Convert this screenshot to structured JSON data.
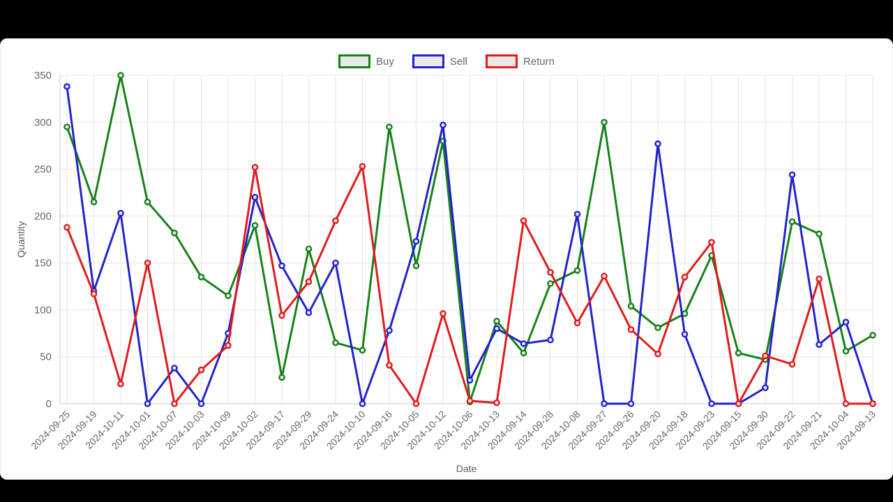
{
  "page": {
    "background_color": "#000000",
    "card_background_color": "#ffffff"
  },
  "chart_data": {
    "type": "line",
    "title": "",
    "xlabel": "Date",
    "ylabel": "Quantity",
    "ylim": [
      0,
      350
    ],
    "yticks": [
      0,
      50,
      100,
      150,
      200,
      250,
      300,
      350
    ],
    "grid": true,
    "legend_position": "top",
    "categories": [
      "2024-09-25",
      "2024-09-19",
      "2024-10-11",
      "2024-10-01",
      "2024-10-07",
      "2024-10-03",
      "2024-10-09",
      "2024-10-02",
      "2024-09-17",
      "2024-09-29",
      "2024-09-24",
      "2024-10-10",
      "2024-09-16",
      "2024-10-05",
      "2024-10-12",
      "2024-10-06",
      "2024-10-13",
      "2024-09-14",
      "2024-09-28",
      "2024-10-08",
      "2024-09-27",
      "2024-09-26",
      "2024-09-20",
      "2024-09-18",
      "2024-09-23",
      "2024-09-15",
      "2024-09-30",
      "2024-09-22",
      "2024-09-21",
      "2024-10-04",
      "2024-09-13"
    ],
    "series": [
      {
        "name": "Buy",
        "color": "#178217",
        "values": [
          295,
          215,
          350,
          215,
          182,
          135,
          115,
          190,
          28,
          165,
          65,
          57,
          295,
          147,
          280,
          2,
          88,
          54,
          128,
          142,
          300,
          104,
          81,
          96,
          158,
          54,
          47,
          194,
          181,
          56,
          73
        ]
      },
      {
        "name": "Sell",
        "color": "#2222cc",
        "values": [
          338,
          120,
          203,
          0,
          38,
          0,
          75,
          220,
          147,
          97,
          150,
          0,
          78,
          173,
          297,
          25,
          80,
          64,
          68,
          202,
          0,
          0,
          277,
          74,
          0,
          0,
          17,
          244,
          63,
          87,
          0
        ]
      },
      {
        "name": "Return",
        "color": "#e01b1b",
        "values": [
          188,
          117,
          21,
          150,
          0,
          36,
          62,
          252,
          94,
          130,
          195,
          253,
          41,
          0,
          96,
          3,
          1,
          195,
          140,
          86,
          136,
          79,
          53,
          135,
          172,
          0,
          51,
          42,
          133,
          0,
          0
        ]
      }
    ],
    "style": {
      "grid_color": "#e5e5ea",
      "axis_border_color": "#c9c9cf",
      "tick_text_color": "#666666",
      "axis_title_color": "#5c5c5c",
      "point_fill_color": "#ececec"
    }
  }
}
